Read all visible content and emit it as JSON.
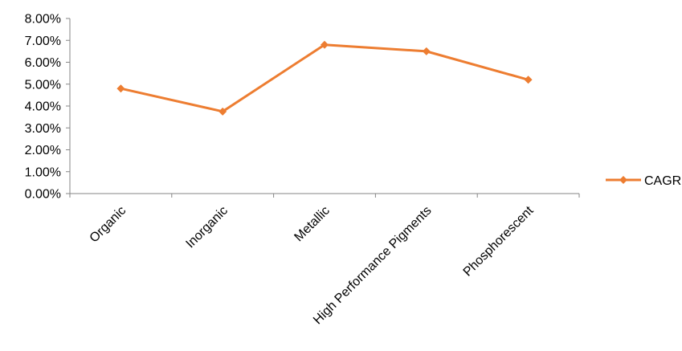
{
  "chart_data": {
    "type": "line",
    "categories": [
      "Organic",
      "Inorganic",
      "Metallic",
      "High Performance Pigments",
      "Phosphorescent"
    ],
    "series": [
      {
        "name": "CAGR",
        "values": [
          4.8,
          3.75,
          6.8,
          6.5,
          5.2
        ],
        "color": "#ED7D31"
      }
    ],
    "ylim": [
      0,
      8
    ],
    "yticks": [
      "0.00%",
      "1.00%",
      "2.00%",
      "3.00%",
      "4.00%",
      "5.00%",
      "6.00%",
      "7.00%",
      "8.00%"
    ],
    "legend_position": "right",
    "grid": false,
    "marker": "diamond"
  }
}
